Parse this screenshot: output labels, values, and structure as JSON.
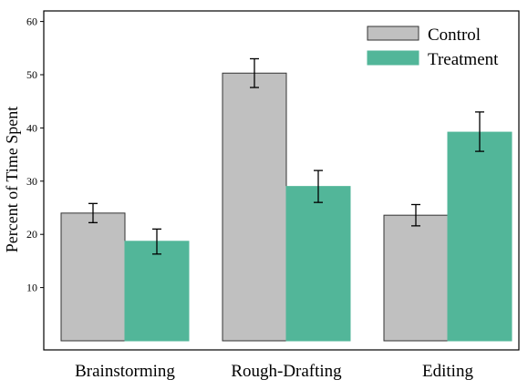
{
  "chart_data": {
    "type": "bar",
    "title": "",
    "xlabel": "",
    "ylabel": "Percent of Time Spent",
    "ylim": [
      0,
      61
    ],
    "yticks": [
      10,
      20,
      30,
      40,
      50,
      60
    ],
    "grid": false,
    "legend_position": "top-right",
    "categories": [
      "Brainstorming",
      "Rough-Drafting",
      "Editing"
    ],
    "series": [
      {
        "name": "Control",
        "color": "#c0c0c0",
        "values": [
          24,
          50.3,
          23.6
        ],
        "error_low": [
          22.2,
          47.6,
          21.6
        ],
        "error_high": [
          25.8,
          53,
          25.6
        ]
      },
      {
        "name": "Treatment",
        "color": "#52b699",
        "values": [
          18.7,
          29,
          39.2
        ],
        "error_low": [
          16.3,
          26,
          35.6
        ],
        "error_high": [
          21,
          32,
          43
        ]
      }
    ]
  }
}
